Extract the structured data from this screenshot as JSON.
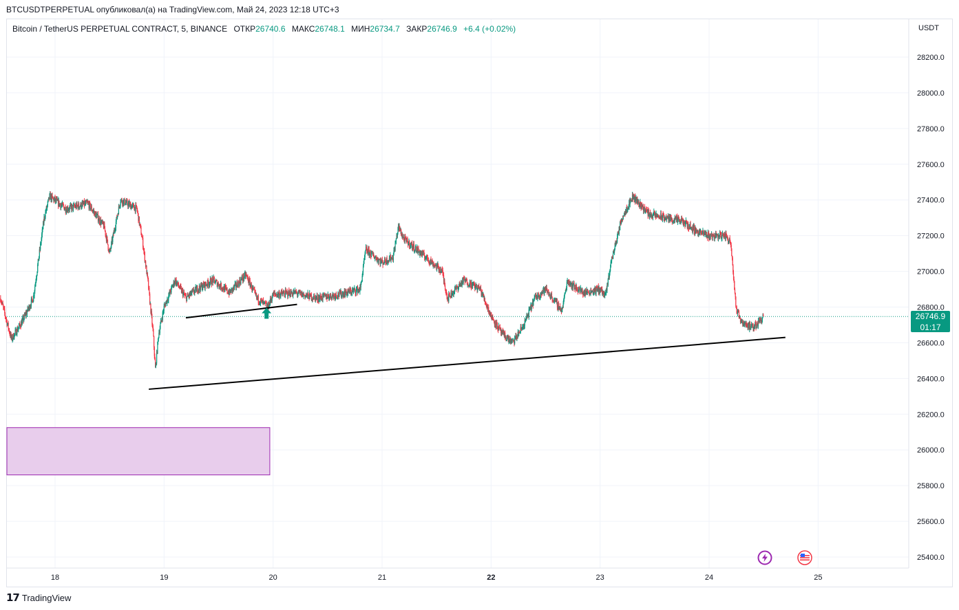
{
  "header": {
    "publish_line": "BTCUSDTPERPETUAL опубликовал(а) на TradingView.com, Май 24, 2023 12:18 UTC+3"
  },
  "legend": {
    "instrument": "Bitcoin / TetherUS PERPETUAL CONTRACT, 5, BINANCE",
    "open_label": "ОТКР",
    "open_value": "26740.6",
    "high_label": "МАКС",
    "high_value": "26748.1",
    "low_label": "МИН",
    "low_value": "26734.7",
    "close_label": "ЗАКР",
    "close_value": "26746.9",
    "change": "+6.4 (+0.02%)"
  },
  "price_axis": {
    "currency": "USDT",
    "ticks": [
      "28200.0",
      "28000.0",
      "27800.0",
      "27600.0",
      "27400.0",
      "27200.0",
      "27000.0",
      "26800.0",
      "26600.0",
      "26400.0",
      "26200.0",
      "26000.0",
      "25800.0",
      "25600.0",
      "25400.0"
    ]
  },
  "last_price": {
    "price": "26746.9",
    "countdown": "01:17"
  },
  "time_axis": {
    "ticks": [
      "18",
      "19",
      "20",
      "21",
      "22",
      "23",
      "24",
      "25"
    ]
  },
  "footer": {
    "brand": "TradingView"
  },
  "icons": {
    "lightning": "lightning-icon",
    "flag": "us-flag-icon"
  },
  "colors": {
    "up": "#089981",
    "down": "#f23645",
    "box_fill": "#e8cdec",
    "box_border": "#9c27b0",
    "trendline": "#000000"
  },
  "chart_data": {
    "type": "candlestick",
    "ylim": [
      25350,
      28300
    ],
    "x_axis_days": [
      "18",
      "19",
      "20",
      "21",
      "22",
      "23",
      "24",
      "25"
    ],
    "series": [
      {
        "points": [
          [
            17.5,
            26850
          ],
          [
            17.6,
            26620
          ],
          [
            17.7,
            26720
          ],
          [
            17.8,
            26850
          ],
          [
            17.9,
            27300
          ],
          [
            17.95,
            27420
          ],
          [
            18.1,
            27350
          ],
          [
            18.3,
            27380
          ],
          [
            18.45,
            27250
          ],
          [
            18.5,
            27100
          ],
          [
            18.6,
            27400
          ],
          [
            18.75,
            27350
          ],
          [
            18.8,
            27180
          ],
          [
            18.85,
            26950
          ],
          [
            18.9,
            26650
          ],
          [
            18.92,
            26450
          ],
          [
            18.95,
            26650
          ],
          [
            19.0,
            26800
          ],
          [
            19.1,
            26950
          ],
          [
            19.2,
            26850
          ],
          [
            19.3,
            26900
          ],
          [
            19.45,
            26950
          ],
          [
            19.6,
            26880
          ],
          [
            19.75,
            26980
          ],
          [
            19.85,
            26850
          ],
          [
            19.95,
            26800
          ],
          [
            20.0,
            26870
          ],
          [
            20.2,
            26880
          ],
          [
            20.4,
            26850
          ],
          [
            20.6,
            26870
          ],
          [
            20.8,
            26900
          ],
          [
            20.85,
            27120
          ],
          [
            21.0,
            27050
          ],
          [
            21.1,
            27080
          ],
          [
            21.15,
            27250
          ],
          [
            21.2,
            27180
          ],
          [
            21.4,
            27080
          ],
          [
            21.55,
            27000
          ],
          [
            21.6,
            26850
          ],
          [
            21.75,
            26950
          ],
          [
            21.9,
            26900
          ],
          [
            22.0,
            26750
          ],
          [
            22.1,
            26650
          ],
          [
            22.2,
            26600
          ],
          [
            22.3,
            26700
          ],
          [
            22.4,
            26850
          ],
          [
            22.5,
            26900
          ],
          [
            22.65,
            26780
          ],
          [
            22.7,
            26950
          ],
          [
            22.75,
            26920
          ],
          [
            22.85,
            26880
          ],
          [
            23.0,
            26900
          ],
          [
            23.05,
            26860
          ],
          [
            23.1,
            27050
          ],
          [
            23.2,
            27300
          ],
          [
            23.3,
            27420
          ],
          [
            23.45,
            27320
          ],
          [
            23.6,
            27300
          ],
          [
            23.75,
            27280
          ],
          [
            23.9,
            27220
          ],
          [
            24.0,
            27200
          ],
          [
            24.15,
            27200
          ],
          [
            24.2,
            27160
          ],
          [
            24.25,
            26780
          ],
          [
            24.3,
            26720
          ],
          [
            24.4,
            26680
          ],
          [
            24.5,
            26750
          ]
        ]
      }
    ],
    "last_close": 26746.9,
    "trendlines": [
      {
        "from": [
          18.86,
          26340
        ],
        "to": [
          24.7,
          26630
        ]
      },
      {
        "from": [
          19.2,
          26740
        ],
        "to": [
          20.22,
          26815
        ]
      }
    ],
    "zones": [
      {
        "x_range": [
          17.45,
          19.97
        ],
        "y_range": [
          25860,
          26125
        ]
      }
    ],
    "markers": [
      {
        "type": "arrow-up",
        "x": 19.94,
        "y": 26750
      }
    ]
  }
}
